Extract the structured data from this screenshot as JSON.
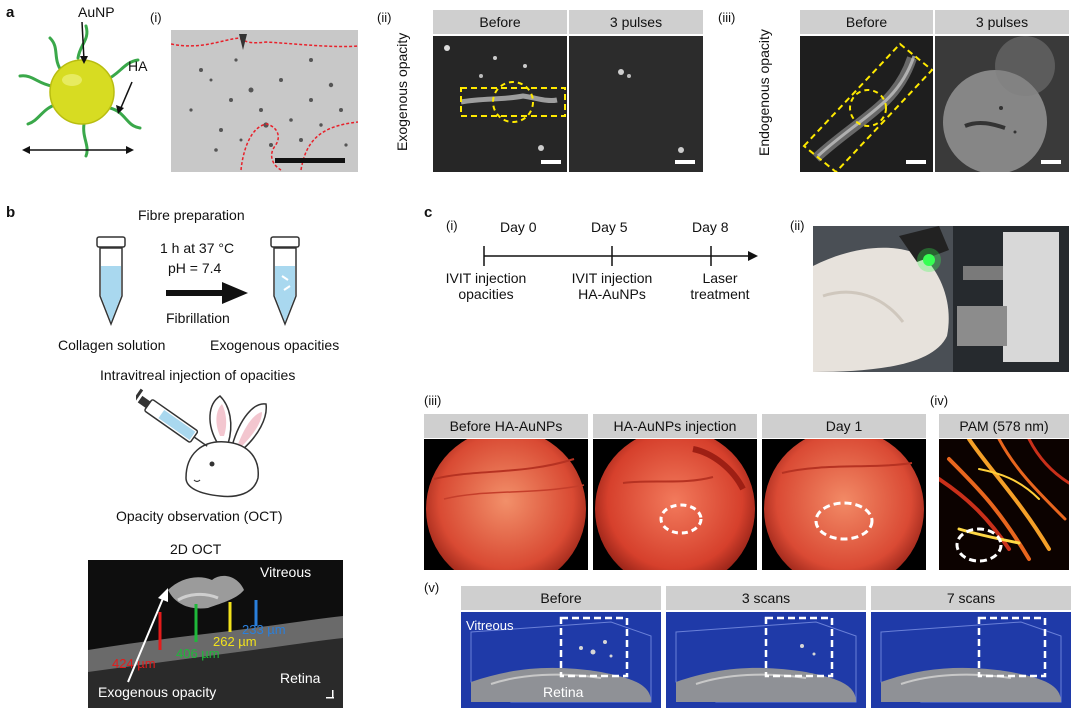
{
  "panel_a": {
    "label": "a",
    "sub_i": "(i)",
    "sub_ii": "(ii)",
    "sub_iii": "(iii)",
    "particle_label_aunp": "AuNP",
    "particle_label_ha": "HA",
    "ii_before": "Before",
    "ii_after": "3 pulses",
    "ii_side": "Exogenous opacity",
    "iii_before": "Before",
    "iii_after": "3 pulses",
    "iii_side": "Endogenous opacity"
  },
  "panel_b": {
    "label": "b",
    "fibre_title": "Fibre preparation",
    "cond_1": "1 h at 37 °C",
    "cond_2": "pH = 7.4",
    "fibrillation": "Fibrillation",
    "collagen": "Collagen solution",
    "exogenous": "Exogenous opacities",
    "injection": "Intravitreal injection of opacities",
    "observation": "Opacity observation (OCT)",
    "oct_title": "2D OCT",
    "oct_vitreous": "Vitreous",
    "oct_retina": "Retina",
    "oct_opacity": "Exogenous opacity",
    "m1": "424 µm",
    "m2": "406 µm",
    "m3": "262 µm",
    "m4": "233 µm"
  },
  "panel_c": {
    "label": "c",
    "sub_i": "(i)",
    "sub_ii": "(ii)",
    "sub_iii": "(iii)",
    "sub_iv": "(iv)",
    "sub_v": "(v)",
    "day0": "Day 0",
    "day5": "Day 5",
    "day8": "Day 8",
    "ev0a": "IVIT injection",
    "ev0b": "opacities",
    "ev5a": "IVIT injection",
    "ev5b": "HA-AuNPs",
    "ev8a": "Laser",
    "ev8b": "treatment",
    "f1": "Before HA-AuNPs",
    "f2": "HA-AuNPs injection",
    "f3": "Day 1",
    "pam": "PAM (578 nm)",
    "v1": "Before",
    "v2": "3 scans",
    "v3": "7 scans",
    "v_vitreous": "Vitreous",
    "v_retina": "Retina"
  },
  "colors": {
    "annotation_yellow": "#ffea00",
    "annotation_red": "#e8202a",
    "oct_red": "#e31b1b",
    "oct_green": "#1fb83a",
    "oct_yellow": "#f2e21b",
    "oct_blue": "#2a7fdc"
  }
}
